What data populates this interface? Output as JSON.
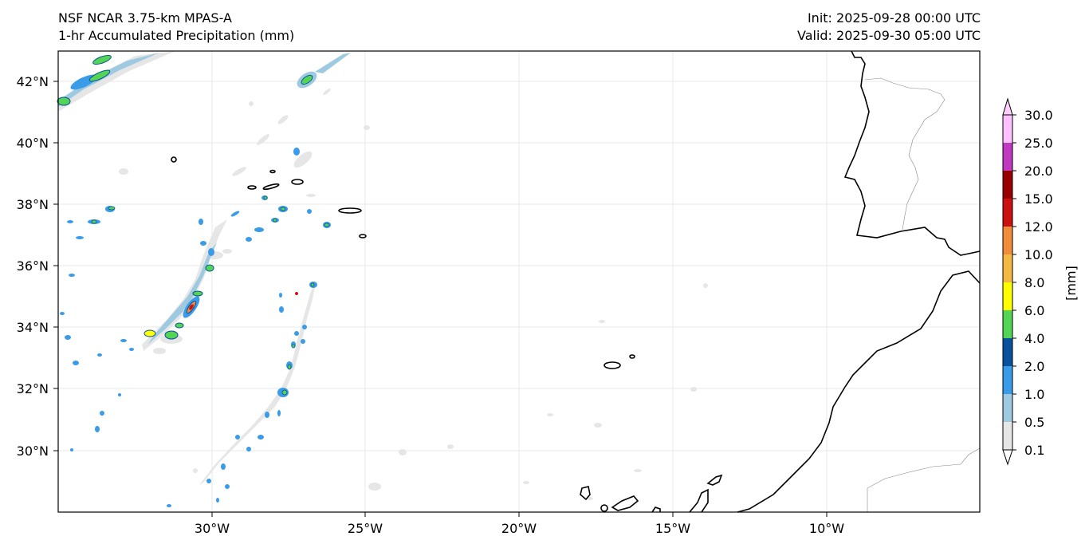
{
  "header": {
    "model": "NSF NCAR 3.75-km MPAS-A",
    "field": "1-hr Accumulated Precipitation (mm)",
    "init": "Init: 2025-09-28 00:00 UTC",
    "valid": "Valid: 2025-09-30 05:00 UTC"
  },
  "map": {
    "lon_ticks": [
      "30°W",
      "25°W",
      "20°W",
      "15°W",
      "10°W"
    ],
    "lat_ticks": [
      "42°N",
      "40°N",
      "38°N",
      "36°N",
      "34°N",
      "32°N",
      "30°N"
    ]
  },
  "colorbar": {
    "unit_label": "[mm]",
    "levels": [
      "0.1",
      "0.5",
      "1.0",
      "2.0",
      "4.0",
      "6.0",
      "8.0",
      "10.0",
      "12.0",
      "15.0",
      "20.0",
      "25.0",
      "30.0"
    ],
    "colors": [
      "#e6e6e6",
      "#9ecae1",
      "#3a9be8",
      "#08519c",
      "#54d454",
      "#ffff00",
      "#f4b944",
      "#f08c3c",
      "#cc1111",
      "#990000",
      "#c039c0",
      "#ffc0ff"
    ]
  }
}
